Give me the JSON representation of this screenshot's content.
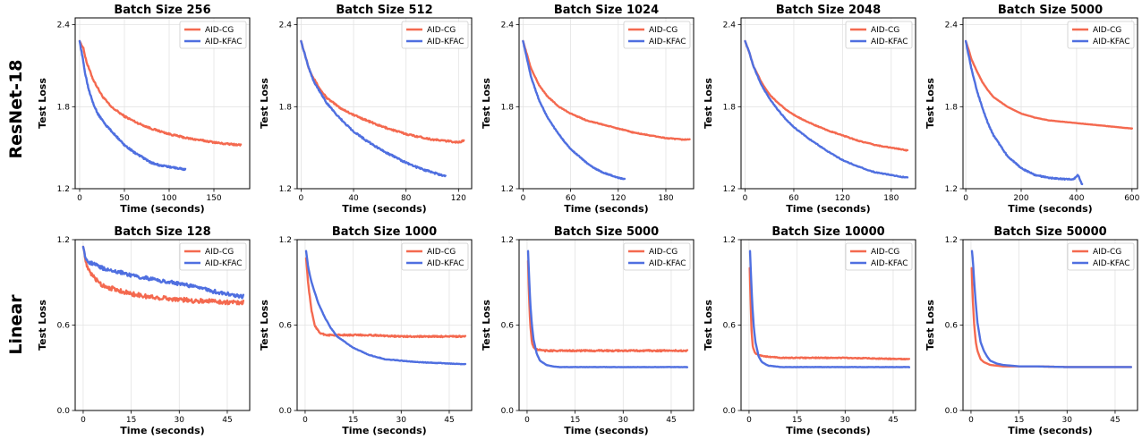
{
  "row_labels": [
    "ResNet-18",
    "Linear"
  ],
  "colors": {
    "AID-CG": "#f4694f",
    "AID-KFAC": "#4f6fe0",
    "grid": "#e3e3e3"
  },
  "chart_data": [
    {
      "type": "line",
      "title": "Batch Size 256",
      "xlabel": "Time (seconds)",
      "ylabel": "Test Loss",
      "xlim": [
        -5,
        190
      ],
      "ylim": [
        1.2,
        2.45
      ],
      "xticks": [
        0,
        50,
        100,
        150
      ],
      "yticks": [
        1.2,
        1.8,
        2.4
      ],
      "grid": true,
      "legend": "top-right",
      "series": [
        {
          "name": "AID-CG",
          "noise": 0.006,
          "x": [
            0,
            4,
            8,
            15,
            25,
            35,
            50,
            65,
            80,
            100,
            120,
            140,
            160,
            180
          ],
          "y": [
            2.28,
            2.23,
            2.12,
            2.0,
            1.88,
            1.8,
            1.73,
            1.68,
            1.64,
            1.6,
            1.57,
            1.55,
            1.53,
            1.52
          ]
        },
        {
          "name": "AID-KFAC",
          "noise": 0.006,
          "x": [
            0,
            3,
            6,
            10,
            15,
            20,
            30,
            40,
            50,
            60,
            70,
            80,
            90,
            100,
            110,
            118
          ],
          "y": [
            2.28,
            2.17,
            2.05,
            1.93,
            1.83,
            1.75,
            1.66,
            1.59,
            1.52,
            1.47,
            1.43,
            1.39,
            1.37,
            1.36,
            1.35,
            1.34
          ]
        }
      ]
    },
    {
      "type": "line",
      "title": "Batch Size 512",
      "xlabel": "Time (seconds)",
      "ylabel": "Test Loss",
      "xlim": [
        -3,
        130
      ],
      "ylim": [
        1.2,
        2.45
      ],
      "xticks": [
        0,
        40,
        80,
        120
      ],
      "yticks": [
        1.2,
        1.8,
        2.4
      ],
      "grid": true,
      "legend": "top-right",
      "series": [
        {
          "name": "AID-CG",
          "noise": 0.006,
          "x": [
            0,
            3,
            6,
            10,
            15,
            20,
            30,
            40,
            50,
            60,
            70,
            80,
            90,
            100,
            110,
            120,
            124
          ],
          "y": [
            2.28,
            2.18,
            2.08,
            2.0,
            1.92,
            1.86,
            1.79,
            1.74,
            1.7,
            1.66,
            1.63,
            1.6,
            1.58,
            1.56,
            1.55,
            1.54,
            1.55
          ]
        },
        {
          "name": "AID-KFAC",
          "noise": 0.006,
          "x": [
            0,
            3,
            6,
            10,
            15,
            20,
            30,
            40,
            50,
            60,
            70,
            80,
            90,
            100,
            110
          ],
          "y": [
            2.28,
            2.18,
            2.08,
            1.98,
            1.9,
            1.82,
            1.71,
            1.62,
            1.55,
            1.49,
            1.44,
            1.39,
            1.35,
            1.32,
            1.29
          ]
        }
      ]
    },
    {
      "type": "line",
      "title": "Batch Size 1024",
      "xlabel": "Time (seconds)",
      "ylabel": "Test Loss",
      "xlim": [
        -5,
        215
      ],
      "ylim": [
        1.2,
        2.45
      ],
      "xticks": [
        0,
        60,
        120,
        180
      ],
      "yticks": [
        1.2,
        1.8,
        2.4
      ],
      "grid": true,
      "legend": "top-right",
      "series": [
        {
          "name": "AID-CG",
          "noise": 0.003,
          "x": [
            0,
            5,
            10,
            20,
            30,
            45,
            60,
            80,
            100,
            120,
            140,
            160,
            180,
            200,
            210
          ],
          "y": [
            2.28,
            2.18,
            2.08,
            1.96,
            1.88,
            1.8,
            1.75,
            1.7,
            1.67,
            1.64,
            1.61,
            1.59,
            1.57,
            1.56,
            1.56
          ]
        },
        {
          "name": "AID-KFAC",
          "noise": 0.003,
          "x": [
            0,
            5,
            10,
            20,
            30,
            40,
            50,
            60,
            70,
            80,
            90,
            100,
            110,
            120,
            128
          ],
          "y": [
            2.28,
            2.15,
            2.02,
            1.85,
            1.73,
            1.64,
            1.56,
            1.49,
            1.44,
            1.39,
            1.35,
            1.32,
            1.3,
            1.28,
            1.27
          ]
        }
      ]
    },
    {
      "type": "line",
      "title": "Batch Size 2048",
      "xlabel": "Time (seconds)",
      "ylabel": "Test Loss",
      "xlim": [
        -5,
        210
      ],
      "ylim": [
        1.2,
        2.45
      ],
      "xticks": [
        0,
        60,
        120,
        180
      ],
      "yticks": [
        1.2,
        1.8,
        2.4
      ],
      "grid": true,
      "legend": "top-right",
      "series": [
        {
          "name": "AID-CG",
          "noise": 0.003,
          "x": [
            0,
            5,
            10,
            20,
            30,
            40,
            50,
            60,
            80,
            100,
            120,
            140,
            160,
            180,
            200
          ],
          "y": [
            2.28,
            2.2,
            2.1,
            1.98,
            1.89,
            1.83,
            1.78,
            1.74,
            1.68,
            1.63,
            1.59,
            1.55,
            1.52,
            1.5,
            1.48
          ]
        },
        {
          "name": "AID-KFAC",
          "noise": 0.003,
          "x": [
            0,
            5,
            10,
            20,
            30,
            40,
            50,
            60,
            80,
            100,
            120,
            140,
            160,
            180,
            200
          ],
          "y": [
            2.28,
            2.2,
            2.1,
            1.96,
            1.86,
            1.78,
            1.71,
            1.65,
            1.56,
            1.48,
            1.41,
            1.36,
            1.32,
            1.3,
            1.28
          ]
        }
      ]
    },
    {
      "type": "line",
      "title": "Batch Size 5000",
      "xlabel": "Time (seconds)",
      "ylabel": "Test Loss",
      "xlim": [
        -10,
        620
      ],
      "ylim": [
        1.2,
        2.45
      ],
      "xticks": [
        0,
        200,
        400,
        600
      ],
      "yticks": [
        1.2,
        1.8,
        2.4
      ],
      "grid": true,
      "legend": "top-right",
      "series": [
        {
          "name": "AID-CG",
          "noise": 0.001,
          "x": [
            0,
            10,
            20,
            40,
            60,
            80,
            100,
            150,
            200,
            250,
            300,
            350,
            400,
            450,
            500,
            550,
            600
          ],
          "y": [
            2.28,
            2.22,
            2.15,
            2.06,
            1.98,
            1.92,
            1.87,
            1.8,
            1.75,
            1.72,
            1.7,
            1.69,
            1.68,
            1.67,
            1.66,
            1.65,
            1.64
          ]
        },
        {
          "name": "AID-KFAC",
          "noise": 0.004,
          "x": [
            0,
            10,
            20,
            40,
            60,
            80,
            100,
            150,
            200,
            250,
            300,
            350,
            390,
            405,
            420
          ],
          "y": [
            2.28,
            2.18,
            2.08,
            1.92,
            1.79,
            1.68,
            1.59,
            1.44,
            1.35,
            1.3,
            1.28,
            1.27,
            1.27,
            1.3,
            1.23
          ]
        }
      ]
    },
    {
      "type": "line",
      "title": "Batch Size 128",
      "xlabel": "Time (seconds)",
      "ylabel": "Test Loss",
      "xlim": [
        -2.5,
        52
      ],
      "ylim": [
        0.0,
        1.2
      ],
      "xticks": [
        0,
        15,
        30,
        45
      ],
      "yticks": [
        0.0,
        0.6,
        1.2
      ],
      "grid": true,
      "legend": "top-right",
      "series": [
        {
          "name": "AID-CG",
          "noise": 0.015,
          "x": [
            0,
            0.5,
            1,
            2,
            4,
            6,
            10,
            15,
            20,
            25,
            30,
            35,
            40,
            45,
            50
          ],
          "y": [
            1.15,
            1.1,
            1.02,
            0.97,
            0.92,
            0.88,
            0.85,
            0.82,
            0.8,
            0.79,
            0.78,
            0.77,
            0.77,
            0.76,
            0.76
          ]
        },
        {
          "name": "AID-KFAC",
          "noise": 0.013,
          "x": [
            0,
            0.5,
            1,
            2,
            4,
            6,
            10,
            15,
            20,
            25,
            30,
            35,
            40,
            45,
            50
          ],
          "y": [
            1.15,
            1.1,
            1.06,
            1.04,
            1.02,
            1.0,
            0.98,
            0.95,
            0.93,
            0.91,
            0.89,
            0.87,
            0.84,
            0.82,
            0.8
          ]
        }
      ]
    },
    {
      "type": "line",
      "title": "Batch Size 1000",
      "xlabel": "Time (seconds)",
      "ylabel": "Test Loss",
      "xlim": [
        -2.5,
        52
      ],
      "ylim": [
        0.0,
        1.2
      ],
      "xticks": [
        0,
        15,
        30,
        45
      ],
      "yticks": [
        0.0,
        0.6,
        1.2
      ],
      "grid": true,
      "legend": "top-right",
      "series": [
        {
          "name": "AID-CG",
          "noise": 0.005,
          "x": [
            0.3,
            1,
            2,
            3,
            4,
            5,
            7,
            10,
            15,
            20,
            30,
            40,
            50
          ],
          "y": [
            1.07,
            0.88,
            0.7,
            0.6,
            0.56,
            0.54,
            0.53,
            0.53,
            0.53,
            0.53,
            0.52,
            0.52,
            0.52
          ]
        },
        {
          "name": "AID-KFAC",
          "noise": 0.002,
          "x": [
            0.3,
            1,
            2,
            4,
            6,
            8,
            10,
            15,
            20,
            25,
            30,
            35,
            40,
            45,
            50
          ],
          "y": [
            1.12,
            1.0,
            0.9,
            0.76,
            0.66,
            0.58,
            0.52,
            0.44,
            0.39,
            0.36,
            0.35,
            0.34,
            0.335,
            0.33,
            0.325
          ]
        }
      ]
    },
    {
      "type": "line",
      "title": "Batch Size 5000",
      "xlabel": "Time (seconds)",
      "ylabel": "Test Loss",
      "xlim": [
        -2.5,
        52
      ],
      "ylim": [
        0.0,
        1.2
      ],
      "xticks": [
        0,
        15,
        30,
        45
      ],
      "yticks": [
        0.0,
        0.6,
        1.2
      ],
      "grid": true,
      "legend": "top-right",
      "series": [
        {
          "name": "AID-CG",
          "noise": 0.005,
          "x": [
            0.3,
            0.6,
            1,
            1.5,
            2,
            3,
            5,
            10,
            20,
            30,
            40,
            50
          ],
          "y": [
            1.05,
            0.8,
            0.6,
            0.48,
            0.44,
            0.43,
            0.42,
            0.42,
            0.42,
            0.42,
            0.42,
            0.42
          ]
        },
        {
          "name": "AID-KFAC",
          "noise": 0.001,
          "x": [
            0.3,
            0.6,
            1,
            1.5,
            2,
            3,
            4,
            6,
            8,
            10,
            20,
            30,
            40,
            50
          ],
          "y": [
            1.12,
            0.95,
            0.75,
            0.6,
            0.5,
            0.4,
            0.35,
            0.32,
            0.31,
            0.305,
            0.305,
            0.305,
            0.305,
            0.305
          ]
        }
      ]
    },
    {
      "type": "line",
      "title": "Batch Size 10000",
      "xlabel": "Time (seconds)",
      "ylabel": "Test Loss",
      "xlim": [
        -2.5,
        52
      ],
      "ylim": [
        0.0,
        1.2
      ],
      "xticks": [
        0,
        15,
        30,
        45
      ],
      "yticks": [
        0.0,
        0.6,
        1.2
      ],
      "grid": true,
      "legend": "top-right",
      "series": [
        {
          "name": "AID-CG",
          "noise": 0.003,
          "x": [
            0.2,
            0.5,
            0.8,
            1.2,
            2,
            3,
            5,
            10,
            20,
            30,
            40,
            50
          ],
          "y": [
            1.0,
            0.75,
            0.55,
            0.44,
            0.4,
            0.39,
            0.38,
            0.37,
            0.37,
            0.37,
            0.365,
            0.36
          ]
        },
        {
          "name": "AID-KFAC",
          "noise": 0.001,
          "x": [
            0.3,
            0.6,
            1,
            1.5,
            2,
            3,
            4,
            6,
            8,
            10,
            20,
            30,
            40,
            50
          ],
          "y": [
            1.12,
            0.95,
            0.75,
            0.58,
            0.48,
            0.38,
            0.34,
            0.315,
            0.31,
            0.305,
            0.305,
            0.305,
            0.305,
            0.305
          ]
        }
      ]
    },
    {
      "type": "line",
      "title": "Batch Size 50000",
      "xlabel": "Time (seconds)",
      "ylabel": "Test Loss",
      "xlim": [
        -2.5,
        52
      ],
      "ylim": [
        0.0,
        1.2
      ],
      "xticks": [
        0,
        15,
        30,
        45
      ],
      "yticks": [
        0.0,
        0.6,
        1.2
      ],
      "grid": true,
      "legend": "top-right",
      "series": [
        {
          "name": "AID-CG",
          "noise": 0.0,
          "x": [
            0.2,
            0.5,
            1,
            1.5,
            2,
            3,
            4,
            6,
            8,
            10,
            15,
            20,
            30,
            40,
            50
          ],
          "y": [
            1.0,
            0.8,
            0.6,
            0.48,
            0.42,
            0.36,
            0.34,
            0.32,
            0.315,
            0.31,
            0.31,
            0.31,
            0.305,
            0.305,
            0.305
          ]
        },
        {
          "name": "AID-KFAC",
          "noise": 0.0,
          "x": [
            0.3,
            0.6,
            1,
            1.5,
            2,
            3,
            4,
            5,
            6,
            8,
            10,
            15,
            20,
            30,
            40,
            50
          ],
          "y": [
            1.12,
            1.05,
            0.9,
            0.75,
            0.62,
            0.48,
            0.42,
            0.38,
            0.35,
            0.33,
            0.32,
            0.31,
            0.31,
            0.305,
            0.305,
            0.305
          ]
        }
      ]
    }
  ]
}
